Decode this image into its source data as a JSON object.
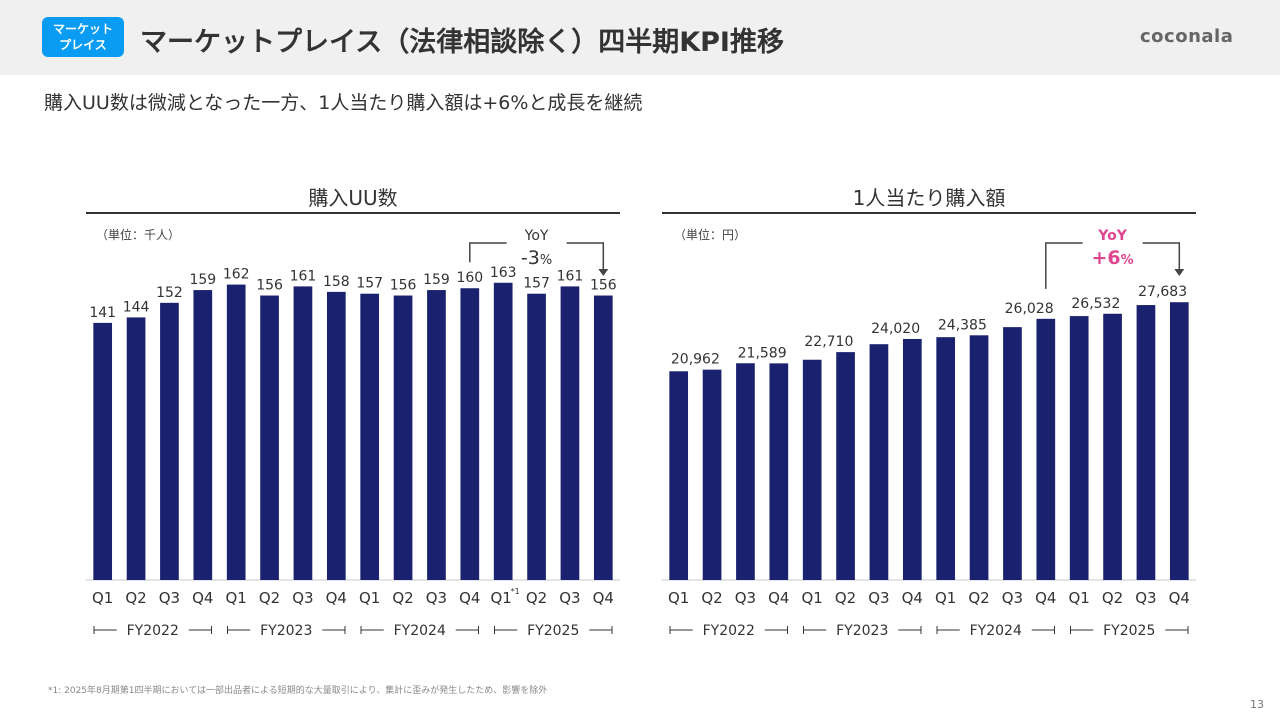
{
  "header": {
    "badge": [
      "マーケット",
      "プレイス"
    ],
    "title": "マーケットプレイス（法律相談除く）四半期KPI推移",
    "logo": "coconala"
  },
  "subtitle": "購入UU数は微減となった一方、1人当たり購入額は+6%と成長を継続",
  "colors": {
    "bar": "#1a2270",
    "badge": "#0a9cf2",
    "yoy_right": "#e0458f",
    "text": "#333333"
  },
  "chart_data": [
    {
      "type": "bar",
      "title": "購入UU数",
      "unit_label": "（単位：千人）",
      "categories": [
        "Q1",
        "Q2",
        "Q3",
        "Q4",
        "Q1",
        "Q2",
        "Q3",
        "Q4",
        "Q1",
        "Q2",
        "Q3",
        "Q4",
        "Q1*1",
        "Q2",
        "Q3",
        "Q4"
      ],
      "fiscal_years": [
        "FY2022",
        "FY2023",
        "FY2024",
        "FY2025"
      ],
      "values": [
        141,
        144,
        152,
        159,
        162,
        156,
        161,
        158,
        157,
        156,
        159,
        160,
        163,
        157,
        161,
        156
      ],
      "labels": [
        "141",
        "144",
        "152",
        "159",
        "162",
        "156",
        "161",
        "158",
        "157",
        "156",
        "159",
        "160",
        "163",
        "157",
        "161",
        "156"
      ],
      "ylim": [
        0,
        170
      ],
      "yoy": {
        "label": "YoY",
        "value": "-3",
        "suffix": "%",
        "from_index": 11,
        "to_index": 15
      },
      "xlabel": "",
      "ylabel": "",
      "grid": false
    },
    {
      "type": "bar",
      "title": "1人当たり購入額",
      "unit_label": "（単位：円）",
      "categories": [
        "Q1",
        "Q2",
        "Q3",
        "Q4",
        "Q1",
        "Q2",
        "Q3",
        "Q4",
        "Q1",
        "Q2",
        "Q3",
        "Q4",
        "Q1",
        "Q2",
        "Q3",
        "Q4"
      ],
      "fiscal_years": [
        "FY2022",
        "FY2023",
        "FY2024",
        "FY2025"
      ],
      "values": [
        20800,
        20962,
        21600,
        21589,
        21950,
        22710,
        23500,
        24020,
        24200,
        24385,
        25200,
        26028,
        26300,
        26532,
        27400,
        27683
      ],
      "labels": [
        "",
        "20,962",
        "",
        "21,589",
        "",
        "22,710",
        "",
        "24,020",
        "",
        "24,385",
        "",
        "26,028",
        "",
        "26,532",
        "",
        "27,683"
      ],
      "ylim": [
        0,
        29000
      ],
      "yoy": {
        "label": "YoY",
        "value": "+6",
        "suffix": "%",
        "from_index": 11,
        "to_index": 15
      },
      "xlabel": "",
      "ylabel": "",
      "grid": false
    }
  ],
  "footnote": "*1: 2025年8月期第1四半期においては一部出品者による短期的な大量取引により、集計に歪みが発生したため、影響を除外",
  "page_number": "13"
}
